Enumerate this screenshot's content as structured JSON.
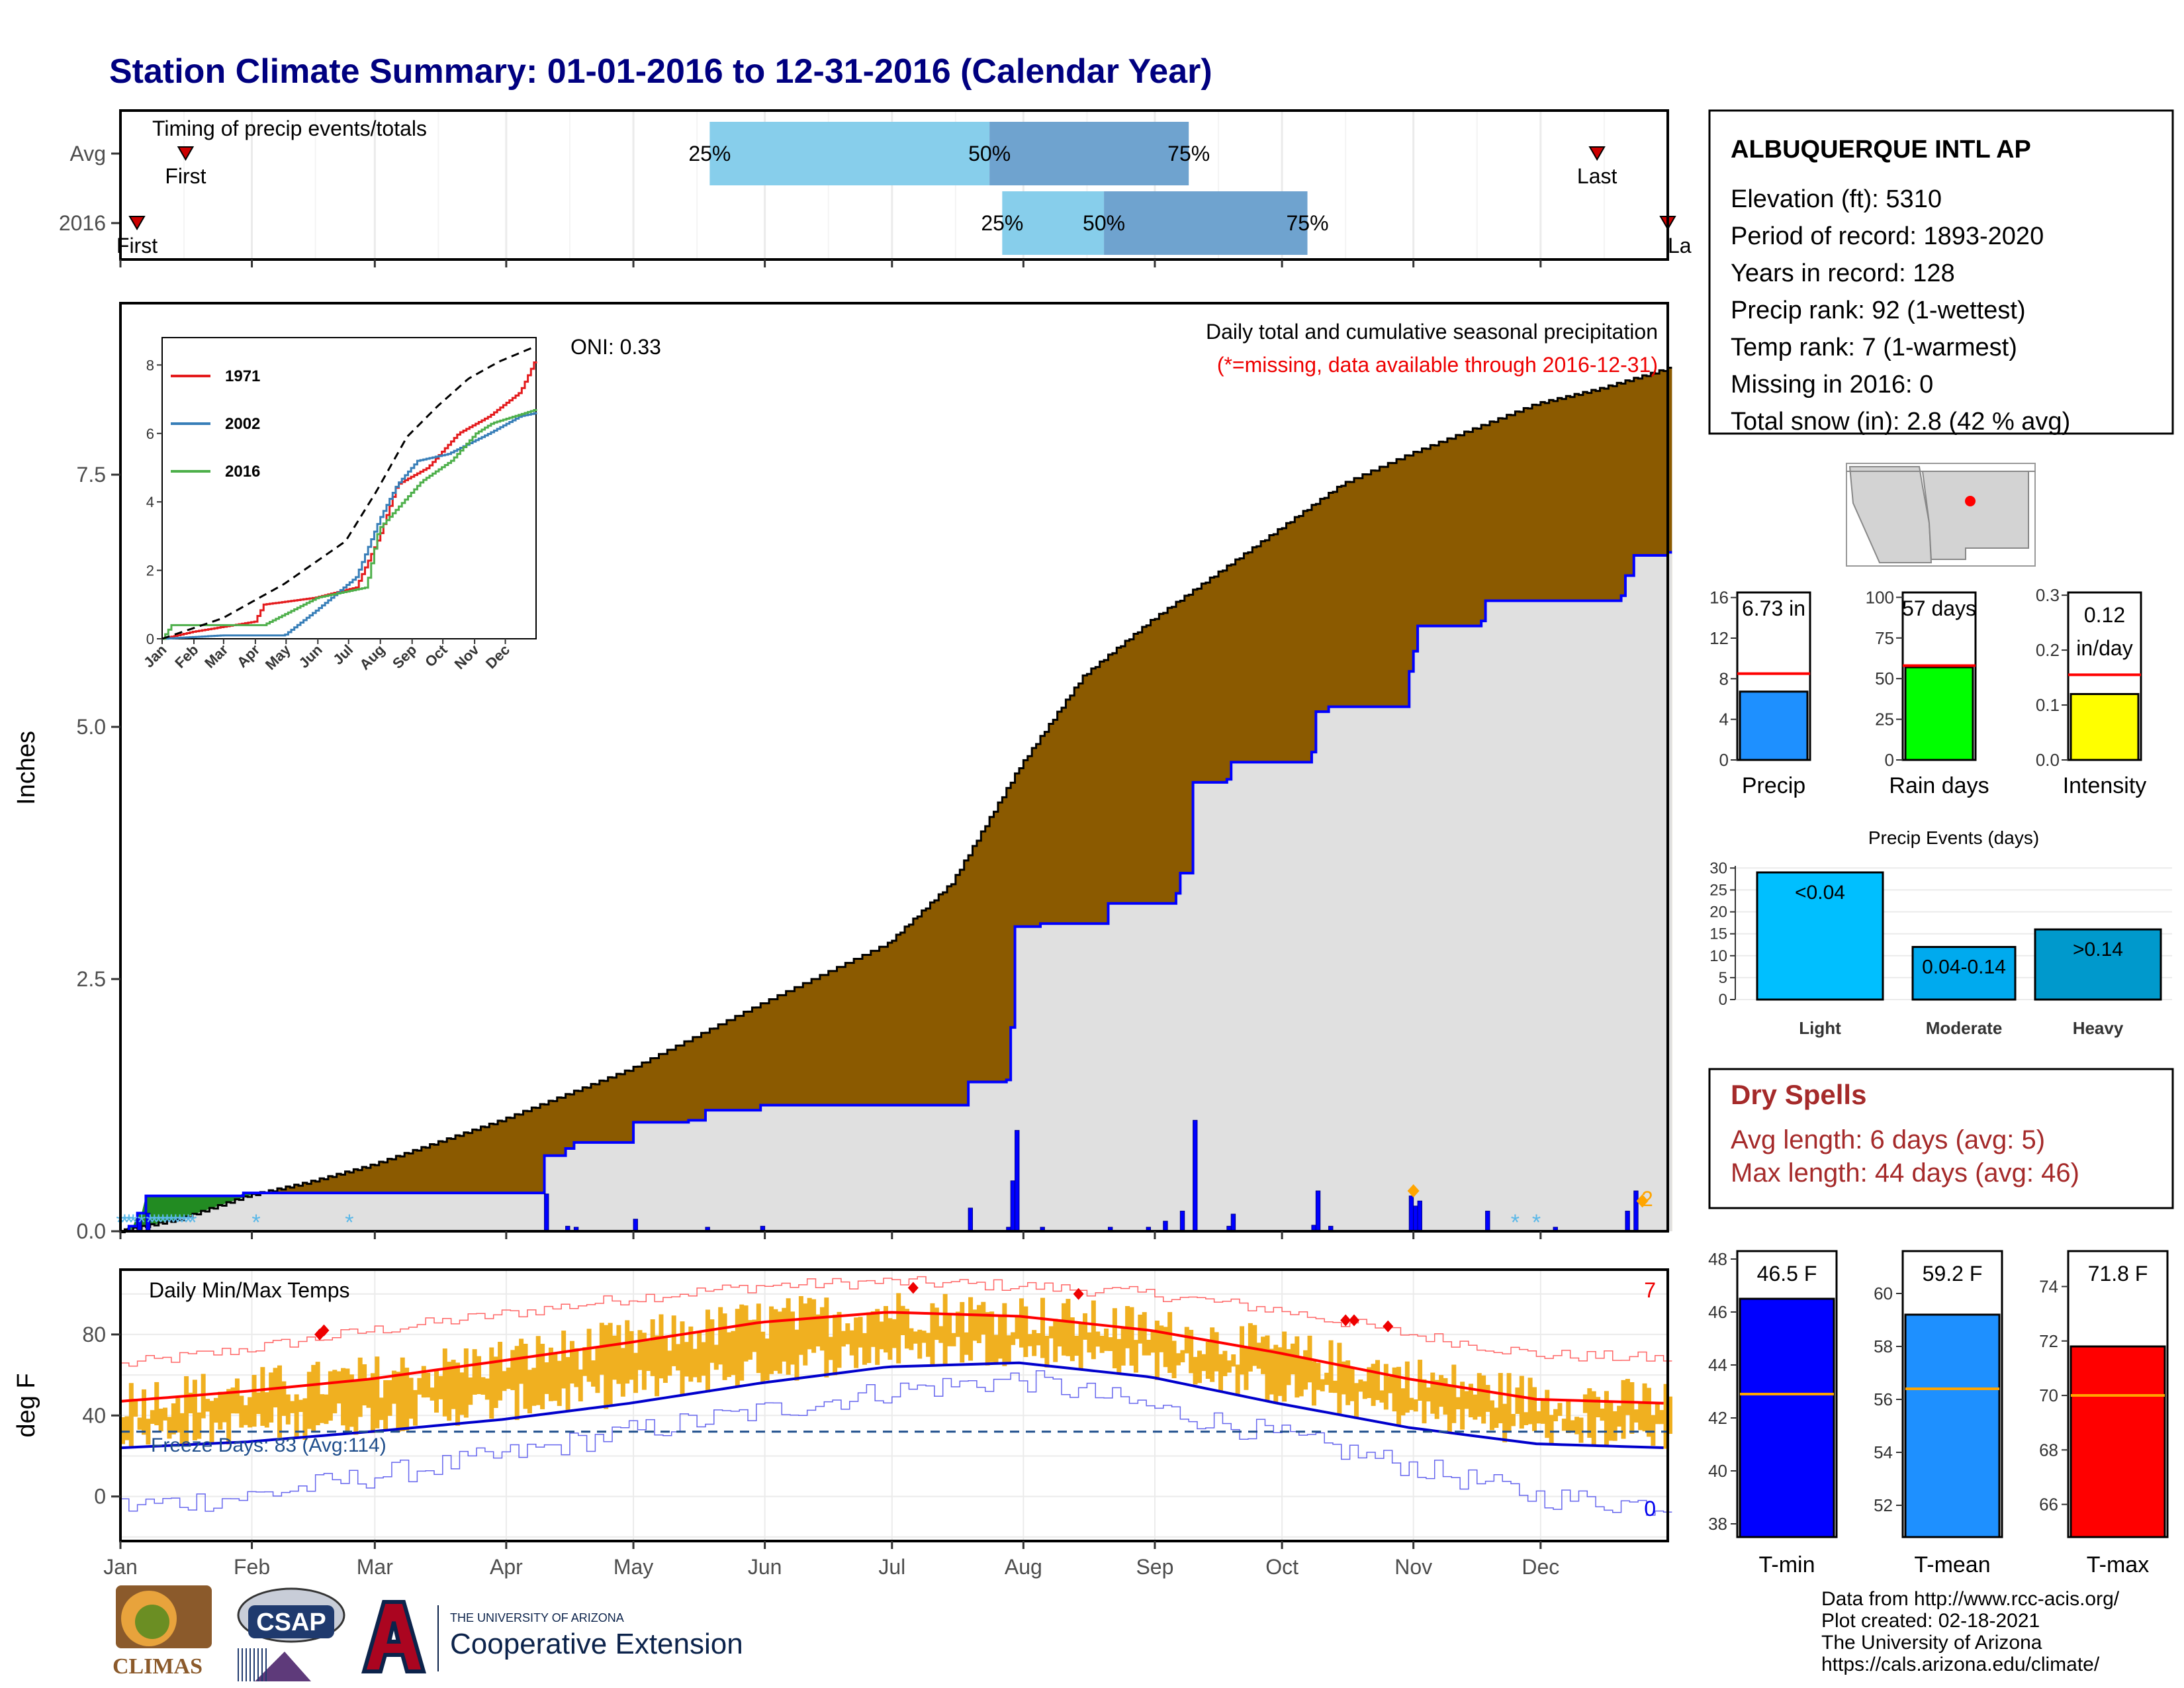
{
  "title": "Station Climate Summary: 01-01-2016 to 12-31-2016 (Calendar Year)",
  "colors": {
    "title": "#000080",
    "precip_fill": "#8B5A00",
    "precip_2016_fill": "#E0E0E0",
    "precip_2016_line": "#0000FF",
    "light_blue": "#87CEEB",
    "steel_blue": "#6FA3CF",
    "tmax_avg": "#FF0000",
    "tmin_avg": "#0000CC",
    "range_bar": "#F0B020",
    "dry_spell": "#A52A2A",
    "freeze_line": "#1F4E8C"
  },
  "timing_panel": {
    "label": "Timing of precip events/totals",
    "rows": [
      {
        "name": "Avg",
        "first_doy": 7,
        "p25_doy": 140,
        "p50_doy": 206,
        "p75_doy": 253,
        "last_doy": 354,
        "first_label": "First",
        "last_label": "Last",
        "p25_label": "25%",
        "p50_label": "50%",
        "p75_label": "75%"
      },
      {
        "name": "2016",
        "first_doy": 1,
        "p25_doy": 209,
        "p50_doy": 233,
        "p75_doy": 281,
        "last_doy": 366,
        "first_label": "First",
        "last_label": "La",
        "p25_label": "25%",
        "p50_label": "50%",
        "p75_label": "75%"
      }
    ]
  },
  "precip_panel": {
    "ylabel": "Inches",
    "yticks": [
      0.0,
      2.5,
      5.0,
      7.5
    ],
    "ytick_labels": [
      "0.0",
      "2.5",
      "5.0",
      "7.5"
    ],
    "ylim": [
      0,
      9.2
    ],
    "oni": "ONI: 0.33",
    "subtitle": "Daily total and cumulative seasonal precipitation",
    "missing_note": "(*=missing, data available through 2016-12-31)",
    "corner_count": "2",
    "avg_cumulative": [
      [
        1,
        0
      ],
      [
        15,
        0.12
      ],
      [
        31,
        0.35
      ],
      [
        45,
        0.48
      ],
      [
        60,
        0.65
      ],
      [
        91,
        1.1
      ],
      [
        121,
        1.6
      ],
      [
        152,
        2.25
      ],
      [
        182,
        2.85
      ],
      [
        197,
        3.45
      ],
      [
        213,
        4.6
      ],
      [
        228,
        5.5
      ],
      [
        244,
        6.05
      ],
      [
        259,
        6.5
      ],
      [
        274,
        6.95
      ],
      [
        289,
        7.4
      ],
      [
        305,
        7.7
      ],
      [
        320,
        7.95
      ],
      [
        335,
        8.2
      ],
      [
        350,
        8.35
      ],
      [
        366,
        8.55
      ]
    ],
    "obs_cumulative": [
      [
        1,
        0
      ],
      [
        3,
        0.05
      ],
      [
        5,
        0.18
      ],
      [
        7,
        0.35
      ],
      [
        30,
        0.38
      ],
      [
        60,
        0.38
      ],
      [
        100,
        0.38
      ],
      [
        101,
        0.75
      ],
      [
        106,
        0.82
      ],
      [
        108,
        0.88
      ],
      [
        122,
        1.08
      ],
      [
        135,
        1.1
      ],
      [
        139,
        1.2
      ],
      [
        150,
        1.2
      ],
      [
        152,
        1.25
      ],
      [
        200,
        1.25
      ],
      [
        201,
        1.48
      ],
      [
        210,
        1.5
      ],
      [
        211,
        2.02
      ],
      [
        212,
        3.02
      ],
      [
        217,
        3.02
      ],
      [
        218,
        3.05
      ],
      [
        230,
        3.05
      ],
      [
        234,
        3.25
      ],
      [
        250,
        3.35
      ],
      [
        251,
        3.55
      ],
      [
        254,
        4.45
      ],
      [
        262,
        4.48
      ],
      [
        263,
        4.65
      ],
      [
        282,
        4.75
      ],
      [
        283,
        5.15
      ],
      [
        286,
        5.2
      ],
      [
        300,
        5.2
      ],
      [
        304,
        5.2
      ],
      [
        305,
        5.55
      ],
      [
        306,
        5.75
      ],
      [
        307,
        6.0
      ],
      [
        322,
        6.05
      ],
      [
        323,
        6.25
      ],
      [
        355,
        6.3
      ],
      [
        356,
        6.5
      ],
      [
        358,
        6.7
      ],
      [
        366,
        6.73
      ]
    ],
    "daily_bars": [
      [
        5,
        0.13
      ],
      [
        7,
        0.18
      ],
      [
        101,
        0.37
      ],
      [
        106,
        0.05
      ],
      [
        108,
        0.04
      ],
      [
        122,
        0.12
      ],
      [
        139,
        0.04
      ],
      [
        152,
        0.05
      ],
      [
        201,
        0.23
      ],
      [
        210,
        0.04
      ],
      [
        211,
        0.5
      ],
      [
        212,
        1.0
      ],
      [
        218,
        0.04
      ],
      [
        234,
        0.04
      ],
      [
        243,
        0.04
      ],
      [
        247,
        0.1
      ],
      [
        251,
        0.2
      ],
      [
        254,
        1.1
      ],
      [
        262,
        0.05
      ],
      [
        263,
        0.17
      ],
      [
        282,
        0.06
      ],
      [
        283,
        0.4
      ],
      [
        286,
        0.05
      ],
      [
        305,
        0.35
      ],
      [
        306,
        0.25
      ],
      [
        307,
        0.3
      ],
      [
        323,
        0.2
      ],
      [
        339,
        0.04
      ],
      [
        356,
        0.2
      ],
      [
        358,
        0.4
      ]
    ],
    "missing_marks": [
      1,
      2,
      3,
      4,
      6,
      8,
      9,
      10,
      11,
      12,
      13,
      14,
      15,
      16,
      17,
      18,
      33,
      55,
      330,
      335
    ],
    "orange_marks": [
      [
        306,
        0.4
      ],
      [
        360,
        0.3
      ]
    ]
  },
  "inset": {
    "legend": [
      "1971",
      "2002",
      "2016"
    ],
    "legend_colors": [
      "#E41A1C",
      "#377EB8",
      "#4DAF4A"
    ],
    "yticks": [
      "0",
      "2",
      "4",
      "6",
      "8"
    ],
    "months": [
      "Jan",
      "Feb",
      "Mar",
      "Apr",
      "May",
      "Jun",
      "Jul",
      "Aug",
      "Sep",
      "Oct",
      "Nov",
      "Dec"
    ],
    "series_1971": [
      [
        1,
        0
      ],
      [
        30,
        0.2
      ],
      [
        91,
        0.5
      ],
      [
        100,
        1.0
      ],
      [
        150,
        1.2
      ],
      [
        190,
        1.5
      ],
      [
        213,
        3.0
      ],
      [
        230,
        4.5
      ],
      [
        260,
        5.0
      ],
      [
        290,
        6.0
      ],
      [
        320,
        6.5
      ],
      [
        350,
        7.2
      ],
      [
        366,
        8.2
      ]
    ],
    "series_2002": [
      [
        1,
        0
      ],
      [
        60,
        0.1
      ],
      [
        120,
        0.1
      ],
      [
        150,
        0.8
      ],
      [
        190,
        1.8
      ],
      [
        213,
        3.5
      ],
      [
        230,
        4.5
      ],
      [
        250,
        5.2
      ],
      [
        280,
        5.4
      ],
      [
        320,
        6.0
      ],
      [
        350,
        6.5
      ],
      [
        366,
        6.6
      ]
    ],
    "series_2016": [
      [
        1,
        0
      ],
      [
        10,
        0.4
      ],
      [
        100,
        0.4
      ],
      [
        152,
        1.2
      ],
      [
        200,
        1.5
      ],
      [
        212,
        3.2
      ],
      [
        254,
        4.6
      ],
      [
        283,
        5.2
      ],
      [
        307,
        6.0
      ],
      [
        323,
        6.3
      ],
      [
        366,
        6.7
      ]
    ],
    "series_avg": [
      [
        1,
        0
      ],
      [
        60,
        0.6
      ],
      [
        120,
        1.6
      ],
      [
        180,
        2.85
      ],
      [
        210,
        4.3
      ],
      [
        240,
        5.9
      ],
      [
        270,
        6.8
      ],
      [
        300,
        7.6
      ],
      [
        330,
        8.1
      ],
      [
        366,
        8.55
      ]
    ]
  },
  "temp_panel": {
    "title": "Daily Min/Max Temps",
    "ylabel": "deg F",
    "yticks": [
      0,
      40,
      80
    ],
    "ytick_labels": [
      "0",
      "40",
      "80"
    ],
    "ylim": [
      -22,
      112
    ],
    "freeze_label": "Freeze Days: 83 (Avg:114)",
    "freeze_line": 32,
    "record_high_count": "7",
    "record_low_count": "0",
    "months": [
      "Jan",
      "Feb",
      "Mar",
      "Apr",
      "May",
      "Jun",
      "Jul",
      "Aug",
      "Sep",
      "Oct",
      "Nov",
      "Dec"
    ],
    "avg_tmax": [
      [
        1,
        47
      ],
      [
        31,
        52
      ],
      [
        60,
        58
      ],
      [
        91,
        67
      ],
      [
        121,
        76
      ],
      [
        152,
        86
      ],
      [
        182,
        91
      ],
      [
        213,
        89
      ],
      [
        244,
        82
      ],
      [
        274,
        71
      ],
      [
        305,
        58
      ],
      [
        335,
        48
      ],
      [
        366,
        46
      ]
    ],
    "avg_tmin": [
      [
        1,
        24
      ],
      [
        31,
        27
      ],
      [
        60,
        32
      ],
      [
        91,
        38
      ],
      [
        121,
        46
      ],
      [
        152,
        56
      ],
      [
        182,
        64
      ],
      [
        213,
        66
      ],
      [
        244,
        59
      ],
      [
        274,
        46
      ],
      [
        305,
        34
      ],
      [
        335,
        26
      ],
      [
        366,
        24
      ]
    ],
    "record_tmax": [
      [
        1,
        65
      ],
      [
        31,
        73
      ],
      [
        60,
        82
      ],
      [
        91,
        90
      ],
      [
        121,
        98
      ],
      [
        152,
        104
      ],
      [
        182,
        106
      ],
      [
        213,
        104
      ],
      [
        244,
        100
      ],
      [
        274,
        92
      ],
      [
        305,
        80
      ],
      [
        335,
        70
      ],
      [
        366,
        68
      ]
    ],
    "record_tmin": [
      [
        1,
        -5
      ],
      [
        31,
        0
      ],
      [
        60,
        10
      ],
      [
        91,
        20
      ],
      [
        121,
        32
      ],
      [
        152,
        42
      ],
      [
        182,
        52
      ],
      [
        213,
        58
      ],
      [
        244,
        44
      ],
      [
        274,
        30
      ],
      [
        305,
        15
      ],
      [
        335,
        0
      ],
      [
        366,
        -5
      ]
    ],
    "record_highs": [
      [
        48,
        80
      ],
      [
        49,
        82
      ],
      [
        188,
        103
      ],
      [
        227,
        100
      ],
      [
        290,
        87
      ],
      [
        292,
        87
      ],
      [
        300,
        84
      ]
    ]
  },
  "station_box": {
    "name": "ALBUQUERQUE INTL AP",
    "lines": [
      "Elevation (ft): 5310",
      "Period of record: 1893-2020",
      "Years in record: 128",
      "Precip rank: 92 (1-wettest)",
      "Temp rank: 7 (1-warmest)",
      "Missing in 2016: 0",
      "Total snow (in): 2.8 (42 % avg)"
    ]
  },
  "mini_precip": {
    "label": "Precip",
    "value_label": "6.73 in",
    "value": 6.73,
    "avg": 8.5,
    "ylim": [
      0,
      16.5
    ],
    "yticks": [
      0,
      4,
      8,
      12,
      16
    ],
    "ytick_labels": [
      "0",
      "4",
      "8",
      "12",
      "16"
    ],
    "color": "#1E90FF"
  },
  "mini_raindays": {
    "label": "Rain days",
    "value_label": "57 days",
    "value": 57,
    "avg": 58,
    "ylim": [
      0,
      103
    ],
    "yticks": [
      0,
      25,
      50,
      75,
      100
    ],
    "ytick_labels": [
      "0",
      "25",
      "50",
      "75",
      "100"
    ],
    "color": "#00FF00"
  },
  "mini_intensity": {
    "label": "Intensity",
    "value_label": "0.12",
    "value_label2": "in/day",
    "value": 0.12,
    "avg": 0.155,
    "ylim": [
      0,
      0.305
    ],
    "yticks": [
      0.0,
      0.1,
      0.2,
      0.3
    ],
    "ytick_labels": [
      "0.0",
      "0.1",
      "0.2",
      "0.3"
    ],
    "color": "#FFFF00"
  },
  "events": {
    "title": "Precip Events (days)",
    "ylim": [
      0,
      30.5
    ],
    "yticks": [
      0,
      5,
      10,
      15,
      20,
      25,
      30
    ],
    "ytick_labels": [
      "0",
      "5",
      "10",
      "15",
      "20",
      "25",
      "30"
    ],
    "bars": [
      {
        "label": "Light",
        "value": 29,
        "bar_label": "<0.04",
        "color": "#00BFFF"
      },
      {
        "label": "Moderate",
        "value": 12,
        "bar_label": "0.04-0.14",
        "color": "#00AAEE"
      },
      {
        "label": "Heavy",
        "value": 16,
        "bar_label": ">0.14",
        "color": "#0099CC"
      }
    ]
  },
  "dry_spells": {
    "title": "Dry Spells",
    "avg_line": "Avg length: 6 days (avg: 5)",
    "max_line": "Max length: 44 days (avg: 46)"
  },
  "temp_bars": [
    {
      "label": "T-min",
      "value_label": "46.5 F",
      "value": 46.5,
      "avg": 42.9,
      "ylim": [
        37.5,
        48.3
      ],
      "yticks": [
        38,
        40,
        42,
        44,
        46,
        48
      ],
      "color": "#0000FF"
    },
    {
      "label": "T-mean",
      "value_label": "59.2 F",
      "value": 59.2,
      "avg": 56.4,
      "ylim": [
        50.8,
        61.6
      ],
      "yticks": [
        52,
        54,
        56,
        58,
        60
      ],
      "color": "#1E90FF"
    },
    {
      "label": "T-max",
      "value_label": "71.8 F",
      "value": 71.8,
      "avg": 70.0,
      "ylim": [
        64.8,
        75.3
      ],
      "yticks": [
        66,
        68,
        70,
        72,
        74
      ],
      "color": "#FF0000"
    }
  ],
  "footer": {
    "lines": [
      "Data from http://www.rcc-acis.org/",
      "Plot created: 02-18-2021",
      "The University of Arizona",
      "https://cals.arizona.edu/climate/"
    ],
    "climas": "CLIMAS",
    "csap": "CSAP",
    "ua_small": "THE UNIVERSITY OF ARIZONA",
    "ua_big": "Cooperative Extension"
  }
}
